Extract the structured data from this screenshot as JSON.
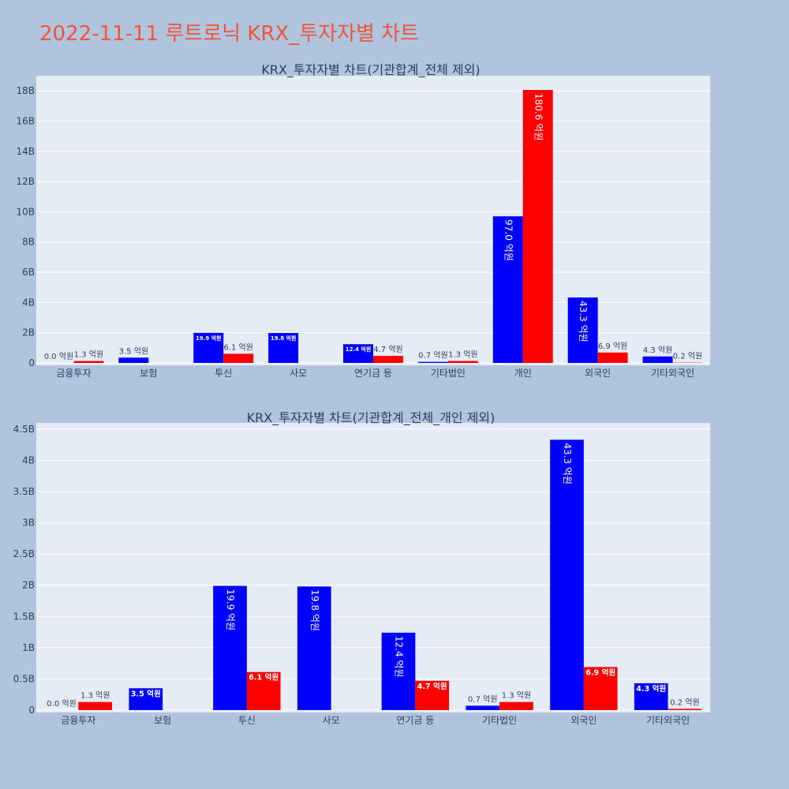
{
  "title": "2022-11-11 루트로닉 KRX_투자자별 차트",
  "colors": {
    "buy": "#0000ff",
    "sell": "#ff0000",
    "plot_bg": "#e5ecf6",
    "paper": "#b0c4de"
  },
  "chart_data": [
    {
      "type": "bar",
      "title": "KRX_투자자별 차트(기관합계_전체 제외)",
      "categories": [
        "금융투자",
        "보험",
        "투신",
        "사모",
        "연기금 등",
        "기타법인",
        "개인",
        "외국인",
        "기타외국인"
      ],
      "series": [
        {
          "values": [
            0.0,
            0.35,
            1.99,
            1.98,
            1.24,
            0.07,
            9.7,
            4.33,
            0.43
          ],
          "labels": [
            "0.0 억원",
            "3.5 억원",
            "19.9 억원",
            "19.8 억원",
            "12.4 억원",
            "0.7 억원",
            "97.0 억원",
            "43.3 억원",
            "4.3 억원"
          ]
        },
        {
          "values": [
            0.13,
            0.0,
            0.61,
            0.0,
            0.47,
            0.13,
            18.06,
            0.69,
            0.02
          ],
          "labels": [
            "1.3 억원",
            "",
            "6.1 억원",
            "",
            "4.7 억원",
            "1.3 억원",
            "180.6 억원",
            "6.9 억원",
            "0.2 억원"
          ]
        }
      ],
      "ylim": [
        0,
        19
      ],
      "yticks": [
        0,
        2,
        4,
        6,
        8,
        10,
        12,
        14,
        16,
        18
      ],
      "ytick_labels": [
        "0",
        "2B",
        "4B",
        "6B",
        "8B",
        "10B",
        "12B",
        "14B",
        "16B",
        "18B"
      ],
      "grid": true
    },
    {
      "type": "bar",
      "title": "KRX_투자자별 차트(기관합계_전체_개인 제외)",
      "categories": [
        "금융투자",
        "보험",
        "투신",
        "사모",
        "연기금 등",
        "기타법인",
        "외국인",
        "기타외국인"
      ],
      "series": [
        {
          "values": [
            0.0,
            0.35,
            1.99,
            1.98,
            1.24,
            0.07,
            4.33,
            0.43
          ],
          "labels": [
            "0.0 억원",
            "3.5 억원",
            "19.9 억원",
            "19.8 억원",
            "12.4 억원",
            "0.7 억원",
            "43.3 억원",
            "4.3 억원"
          ]
        },
        {
          "values": [
            0.13,
            0.0,
            0.61,
            0.0,
            0.47,
            0.13,
            0.69,
            0.02
          ],
          "labels": [
            "1.3 억원",
            "",
            "6.1 억원",
            "",
            "4.7 억원",
            "1.3 억원",
            "6.9 억원",
            "0.2 억원"
          ]
        }
      ],
      "ylim": [
        0,
        4.6
      ],
      "yticks": [
        0,
        0.5,
        1,
        1.5,
        2,
        2.5,
        3,
        3.5,
        4,
        4.5
      ],
      "ytick_labels": [
        "0",
        "0.5B",
        "1B",
        "1.5B",
        "2B",
        "2.5B",
        "3B",
        "3.5B",
        "4B",
        "4.5B"
      ],
      "grid": true
    }
  ]
}
